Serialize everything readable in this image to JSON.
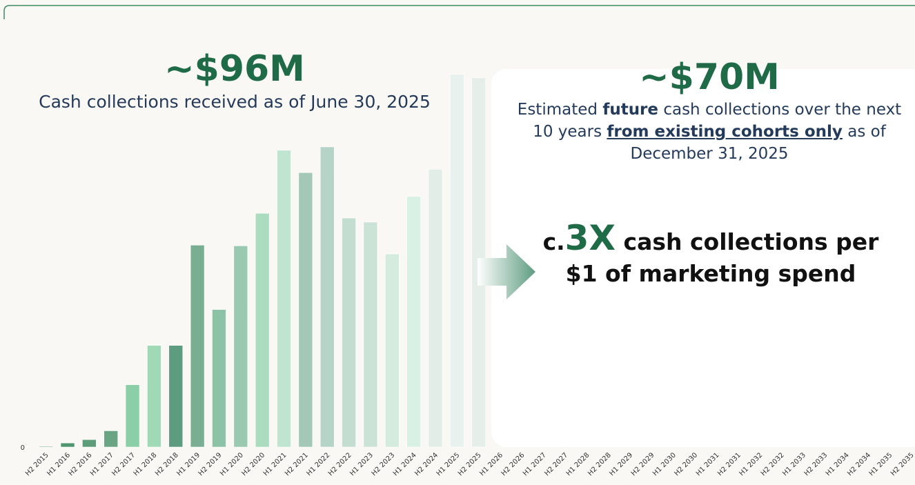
{
  "chart_data": {
    "type": "bar",
    "left_headline": "~$96M",
    "left_subtitle": "Cash collections received as of June 30, 2025",
    "right_headline": "~$70M",
    "right_text": [
      "Estimated ",
      "future",
      " cash collections over the next 10 years ",
      "from existing cohorts only",
      " as of December 31, 2025"
    ],
    "multiple_prefix": "c.",
    "multiple": "3X",
    "multiple_text": " cash collections per $1 of marketing spend",
    "categories": [
      "H2 2015",
      "H1 2016",
      "H2 2016",
      "H1 2017",
      "H2 2017",
      "H1 2018",
      "H2 2018",
      "H1 2019",
      "H2 2019",
      "H1 2020",
      "H2 2020",
      "H1 2021",
      "H2 2021",
      "H1 2022",
      "H2 2022",
      "H1 2023",
      "H2 2023",
      "H1 2024",
      "H2 2024",
      "H1 2025",
      "H2 2025",
      "H1 2026",
      "H2 2026",
      "H1 2027",
      "H2 2027",
      "H1 2028",
      "H2 2028",
      "H1 2029",
      "H2 2029",
      "H1 2030",
      "H2 2030",
      "H1 2031",
      "H2 2031",
      "H1 2032",
      "H2 2032",
      "H1 2033",
      "H2 2033",
      "H1 2034",
      "H2 2034",
      "H1 2035",
      "H2 2035"
    ],
    "values": [
      1,
      6,
      11,
      24,
      92,
      150,
      150,
      298,
      203,
      297,
      345,
      438,
      405,
      443,
      338,
      332,
      285,
      370,
      410,
      550,
      545,
      null,
      null,
      null,
      null,
      null,
      null,
      null,
      null,
      null,
      null,
      null,
      null,
      null,
      null,
      null,
      null,
      null,
      null,
      null,
      null
    ],
    "colors": [
      "#3d8a62",
      "#4f9570",
      "#5c9c78",
      "#6aa583",
      "#8acfa5",
      "#9fd9b6",
      "#5e9c80",
      "#79ae93",
      "#8cc2a6",
      "#99c9b0",
      "#acdcc0",
      "#bfe5d1",
      "#a3c8b8",
      "#b5d3c6",
      "#c3ddd0",
      "#cbe2d6",
      "#d5ebde",
      "#d9f0e4",
      "#e2ede8",
      "#e8f1ed",
      "#e6eeea",
      null,
      null,
      null,
      null,
      null,
      null,
      null,
      null,
      null,
      null,
      null,
      null,
      null,
      null,
      null,
      null,
      null,
      null,
      null,
      null
    ],
    "ylim": [
      0,
      560
    ],
    "yticks": [
      0
    ]
  }
}
